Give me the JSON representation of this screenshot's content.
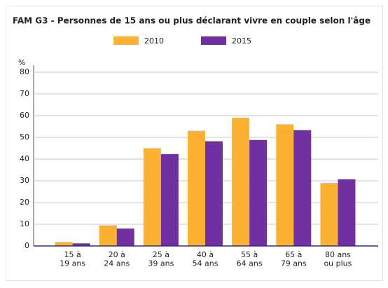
{
  "chart_data": {
    "type": "bar",
    "title": "FAM G3 - Personnes de 15 ans ou plus déclarant vivre en couple selon l'âge",
    "y_label": "%",
    "categories": [
      "15 à\n19 ans",
      "20 à\n24 ans",
      "25 à\n39 ans",
      "40 à\n54 ans",
      "55 à\n64 ans",
      "65 à\n79 ans",
      "80 ans\nou plus"
    ],
    "series": [
      {
        "name": "2010",
        "color": "#fbb131",
        "values": [
          1.8,
          9.5,
          45,
          53,
          59,
          56,
          29
        ]
      },
      {
        "name": "2015",
        "color": "#7030a0",
        "values": [
          1.2,
          8,
          42.3,
          48.2,
          48.8,
          53.3,
          30.7
        ]
      }
    ],
    "ylim": [
      0,
      80
    ],
    "yticks": [
      0,
      10,
      20,
      30,
      40,
      50,
      60,
      70,
      80
    ],
    "grid": true
  }
}
